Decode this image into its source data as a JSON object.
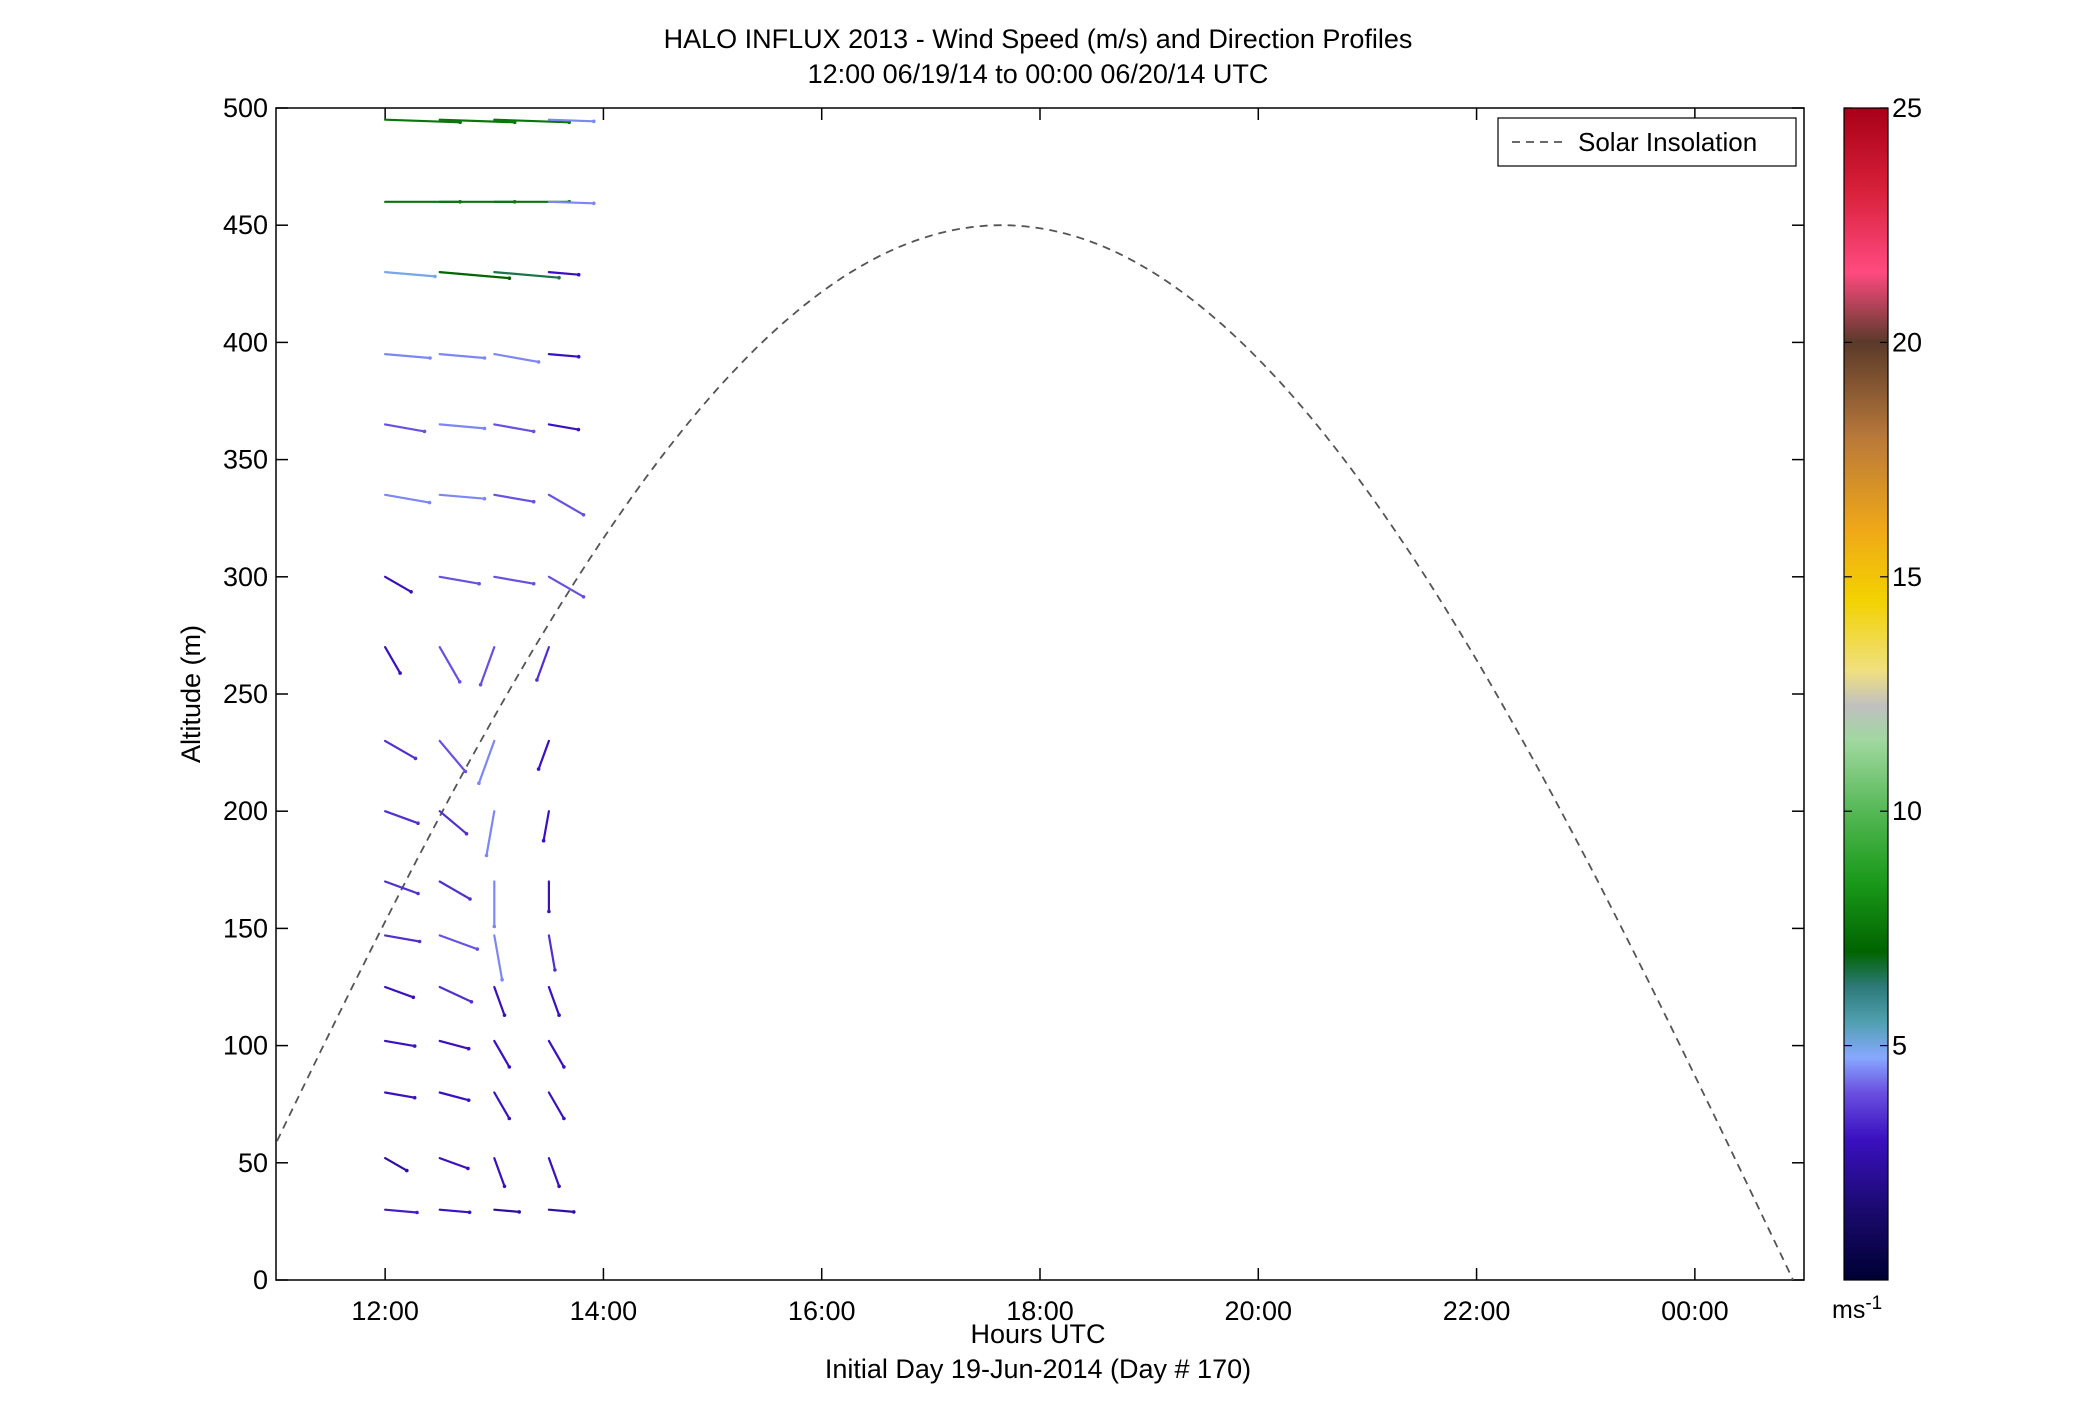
{
  "chart_data": {
    "type": "quiver",
    "title": "HALO INFLUX 2013 - Wind Speed (m/s) and Direction Profiles",
    "subtitle": "12:00 06/19/14 to 00:00 06/20/14  UTC",
    "xlabel": "Hours UTC",
    "xlabel2": "Initial Day 19-Jun-2014 (Day # 170)",
    "ylabel": "Altitude (m)",
    "xlim": [
      11,
      25
    ],
    "ylim": [
      0,
      500
    ],
    "x_ticks": [
      {
        "value": 12,
        "label": "12:00"
      },
      {
        "value": 14,
        "label": "14:00"
      },
      {
        "value": 16,
        "label": "16:00"
      },
      {
        "value": 18,
        "label": "18:00"
      },
      {
        "value": 20,
        "label": "20:00"
      },
      {
        "value": 22,
        "label": "22:00"
      },
      {
        "value": 24,
        "label": "00:00"
      }
    ],
    "y_ticks": [
      0,
      50,
      100,
      150,
      200,
      250,
      300,
      350,
      400,
      450,
      500
    ],
    "colorbar": {
      "range": [
        0,
        25
      ],
      "ticks": [
        5,
        10,
        15,
        20,
        25
      ],
      "unit": "ms",
      "unit_sup": "-1"
    },
    "legend": {
      "label": "Solar Insolation",
      "location": "top-right"
    },
    "solar_insolation": {
      "peak_x": 17.67,
      "peak_y": 450,
      "start_x": 10.4,
      "end_x": 24.9
    },
    "wind_altitudes": [
      30,
      52,
      80,
      102,
      125,
      147,
      170,
      200,
      230,
      270,
      300,
      335,
      365,
      395,
      430,
      460,
      495
    ],
    "wind_profiles": [
      {
        "t": 12.0,
        "speed": [
          3.2,
          2.5,
          3.0,
          3.0,
          3.0,
          3.5,
          3.5,
          3.5,
          3.5,
          3.0,
          3.0,
          4.5,
          4.0,
          4.5,
          5.0,
          7.5,
          7.5
        ],
        "dir": [
          95,
          120,
          100,
          100,
          110,
          100,
          110,
          110,
          120,
          150,
          120,
          100,
          100,
          95,
          95,
          90,
          92
        ]
      },
      {
        "t": 12.5,
        "speed": [
          3.0,
          3.0,
          3.0,
          3.0,
          3.5,
          4.0,
          3.5,
          3.5,
          4.0,
          4.0,
          4.0,
          4.5,
          4.5,
          4.5,
          7.0,
          7.5,
          7.5
        ],
        "dir": [
          95,
          110,
          105,
          105,
          115,
          110,
          120,
          130,
          140,
          150,
          100,
          95,
          95,
          95,
          95,
          90,
          92
        ]
      },
      {
        "t": 13.0,
        "speed": [
          2.5,
          3.0,
          3.0,
          3.0,
          3.0,
          4.5,
          4.5,
          4.5,
          4.5,
          4.0,
          4.0,
          4.0,
          4.0,
          4.5,
          6.5,
          7.5,
          7.5
        ],
        "dir": [
          95,
          160,
          150,
          150,
          160,
          170,
          180,
          190,
          200,
          200,
          100,
          100,
          100,
          100,
          95,
          90,
          92
        ]
      },
      {
        "t": 13.5,
        "speed": [
          2.5,
          3.0,
          3.0,
          3.0,
          3.0,
          3.5,
          3.0,
          3.0,
          3.0,
          3.5,
          4.0,
          4.0,
          3.0,
          3.0,
          3.0,
          4.5,
          4.5
        ],
        " dir": [
          95,
          160,
          150,
          150,
          160,
          170,
          180,
          190,
          200,
          200,
          120,
          120,
          100,
          95,
          95,
          92,
          92
        ]
      }
    ],
    "note": "generated field"
  }
}
